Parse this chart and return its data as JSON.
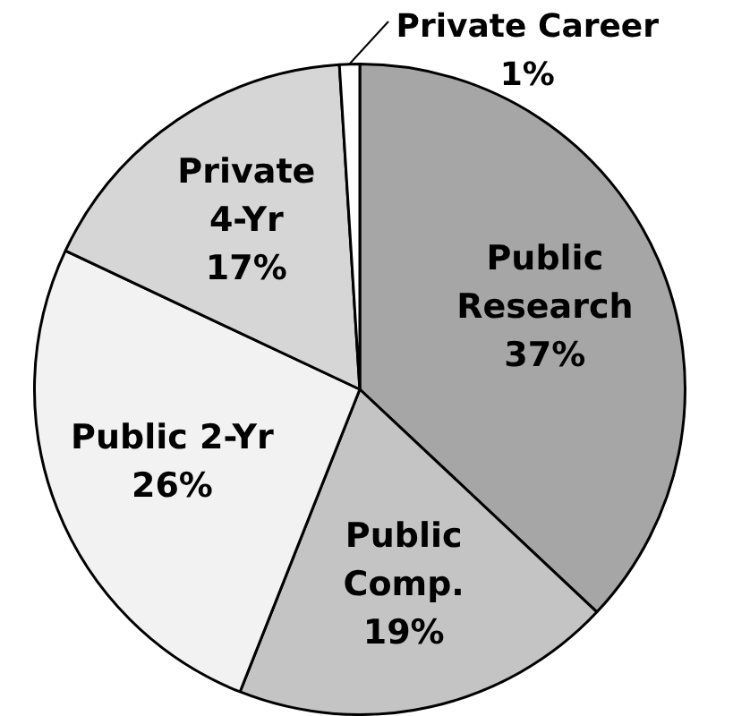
{
  "chart_data": {
    "type": "pie",
    "categories": [
      "Public Research",
      "Public Comp.",
      "Public 2-Yr",
      "Private 4-Yr",
      "Private Career"
    ],
    "values": [
      37,
      19,
      26,
      17,
      1
    ],
    "colors": [
      "#a6a6a6",
      "#c4c4c4",
      "#f2f2f2",
      "#d6d6d6",
      "#ffffff"
    ],
    "value_labels": [
      "37%",
      "19%",
      "26%",
      "17%",
      "1%"
    ],
    "legend": false
  }
}
